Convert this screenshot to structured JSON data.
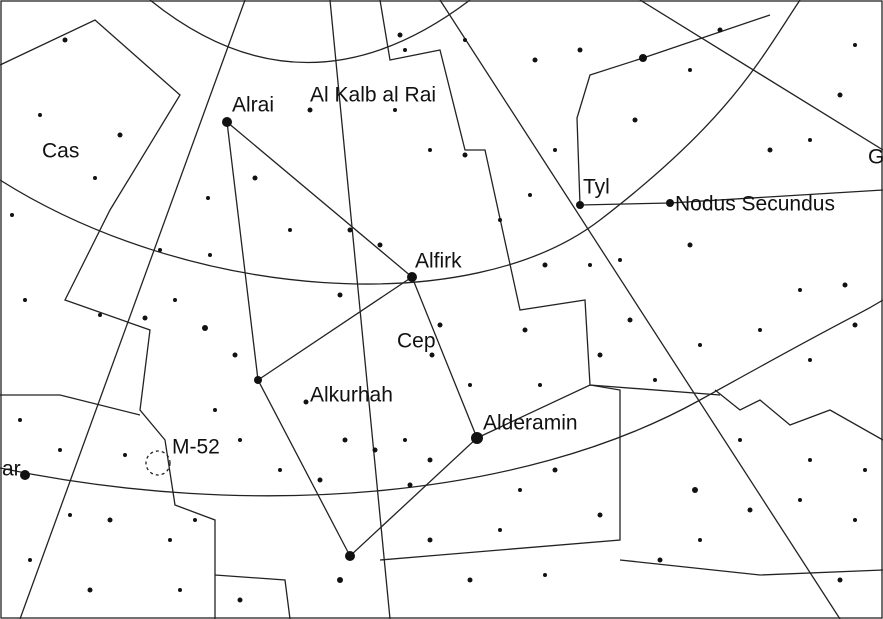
{
  "map": {
    "labels": [
      "Alrai",
      "Al Kalb al Rai",
      "Cas",
      "Tyl",
      "Nodus Secundus",
      "Alfirk",
      "Cep",
      "Alkurhah",
      "Alderamin",
      "M-52",
      "ar",
      "G"
    ]
  }
}
